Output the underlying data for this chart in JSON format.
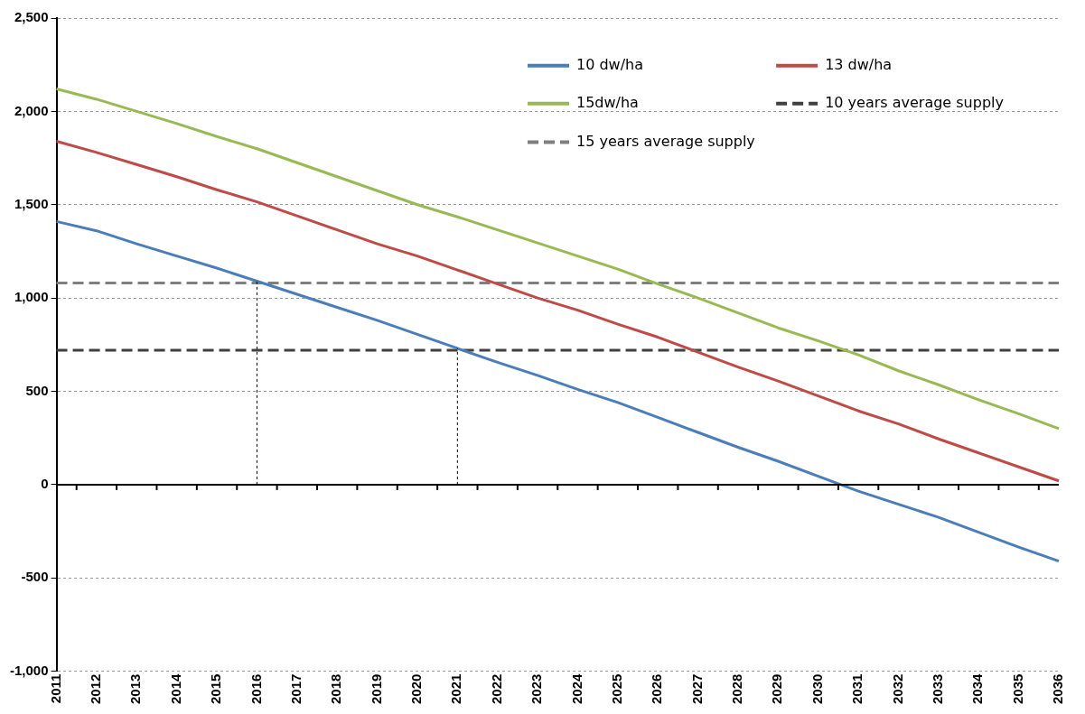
{
  "chart_data": {
    "type": "line",
    "categories": [
      "2011",
      "2012",
      "2013",
      "2014",
      "2015",
      "2016",
      "2017",
      "2018",
      "2019",
      "2020",
      "2021",
      "2022",
      "2023",
      "2024",
      "2025",
      "2026",
      "2027",
      "2028",
      "2029",
      "2030",
      "2031",
      "2032",
      "2033",
      "2034",
      "2035",
      "2036"
    ],
    "series": [
      {
        "name": "10 dw/ha",
        "color": "#4a7ebb",
        "values": [
          1410,
          1360,
          1290,
          1225,
          1160,
          1090,
          1020,
          950,
          880,
          805,
          730,
          655,
          585,
          510,
          440,
          360,
          280,
          200,
          125,
          45,
          -35,
          -105,
          -175,
          -255,
          -335,
          -410
        ]
      },
      {
        "name": "13 dw/ha",
        "color": "#be4b48",
        "values": [
          1840,
          1780,
          1715,
          1650,
          1580,
          1515,
          1440,
          1365,
          1290,
          1225,
          1150,
          1075,
          1000,
          935,
          860,
          790,
          710,
          630,
          555,
          475,
          395,
          325,
          245,
          170,
          95,
          20
        ]
      },
      {
        "name": "15dw/ha",
        "color": "#98b954",
        "values": [
          2120,
          2065,
          2000,
          1935,
          1865,
          1800,
          1725,
          1650,
          1575,
          1500,
          1435,
          1365,
          1295,
          1225,
          1155,
          1075,
          1000,
          920,
          840,
          770,
          695,
          610,
          535,
          455,
          380,
          300
        ]
      },
      {
        "name": "10 years average supply",
        "color": "#404040",
        "line_style": "dashed",
        "values": [
          720,
          720,
          720,
          720,
          720,
          720,
          720,
          720,
          720,
          720,
          720,
          720,
          720,
          720,
          720,
          720,
          720,
          720,
          720,
          720,
          720,
          720,
          720,
          720,
          720,
          720
        ]
      },
      {
        "name": "15 years average supply",
        "color": "#7f7f7f",
        "line_style": "dashed",
        "values": [
          1080,
          1080,
          1080,
          1080,
          1080,
          1080,
          1080,
          1080,
          1080,
          1080,
          1080,
          1080,
          1080,
          1080,
          1080,
          1080,
          1080,
          1080,
          1080,
          1080,
          1080,
          1080,
          1080,
          1080,
          1080,
          1080
        ]
      }
    ],
    "ylim": [
      -1000,
      2500
    ],
    "yticks": [
      {
        "value": -1000,
        "label": "-1,000"
      },
      -500,
      0,
      500,
      {
        "value": 1000,
        "label": "1,000"
      },
      {
        "value": 1500,
        "label": "1,500"
      },
      {
        "value": 2000,
        "label": "2,000"
      },
      {
        "value": 2500,
        "label": "2,500"
      }
    ],
    "ref_lines": [
      {
        "axis": "x",
        "value": "2016",
        "color": "#000000",
        "line_style": "dotted"
      },
      {
        "axis": "x",
        "value": "2021",
        "color": "#000000",
        "line_style": "dotted"
      }
    ],
    "grid": "y",
    "legend": "top right",
    "marker": "none"
  }
}
